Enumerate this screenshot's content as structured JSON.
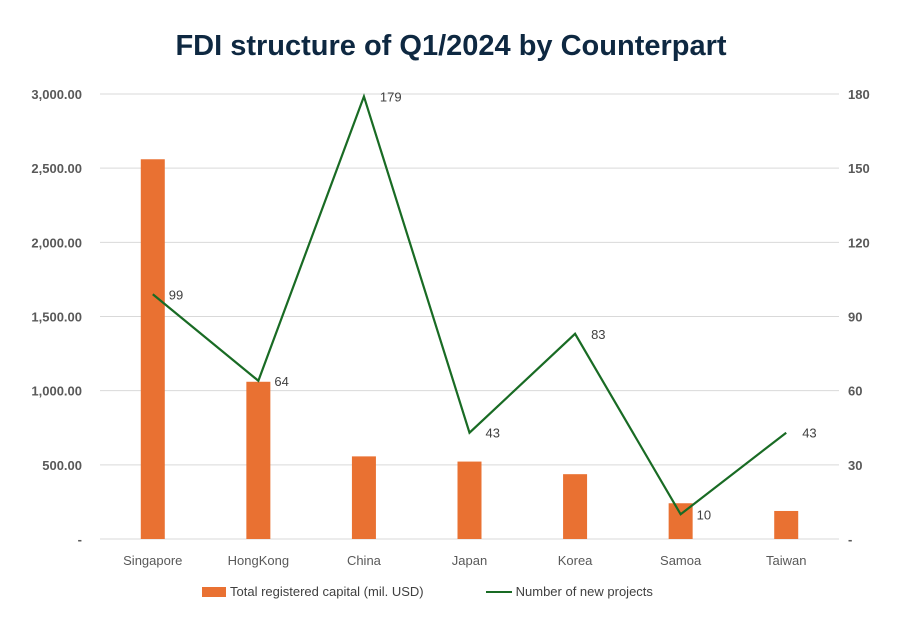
{
  "chart_data": {
    "type": "bar+line",
    "title": "FDI structure of Q1/2024 by Counterpart",
    "categories": [
      "Singapore",
      "HongKong",
      "China",
      "Japan",
      "Korea",
      "Samoa",
      "Taiwan"
    ],
    "series": [
      {
        "name": "Total registered capital (mil. USD)",
        "type": "bar",
        "axis": "left",
        "color": "#e97132",
        "values": [
          2560,
          1060,
          557,
          522,
          437,
          241,
          189
        ]
      },
      {
        "name": "Number of new projects",
        "type": "line",
        "axis": "right",
        "color": "#196b24",
        "values": [
          99,
          64,
          179,
          43,
          83,
          10,
          43
        ],
        "labels": [
          "99",
          "64",
          "179",
          "43",
          "83",
          "10",
          "43"
        ]
      }
    ],
    "left_axis": {
      "ylim": [
        0,
        3000
      ],
      "ticks": [
        0,
        500,
        1000,
        1500,
        2000,
        2500,
        3000
      ],
      "tick_labels": [
        "-",
        "500.00",
        "1,000.00",
        "1,500.00",
        "2,000.00",
        "2,500.00",
        "3,000.00"
      ]
    },
    "right_axis": {
      "ylim": [
        0,
        180
      ],
      "ticks": [
        0,
        30,
        60,
        90,
        120,
        150,
        180
      ],
      "tick_labels": [
        "-",
        "30",
        "60",
        "90",
        "120",
        "150",
        "180"
      ]
    },
    "grid": true,
    "legend_position": "bottom"
  }
}
